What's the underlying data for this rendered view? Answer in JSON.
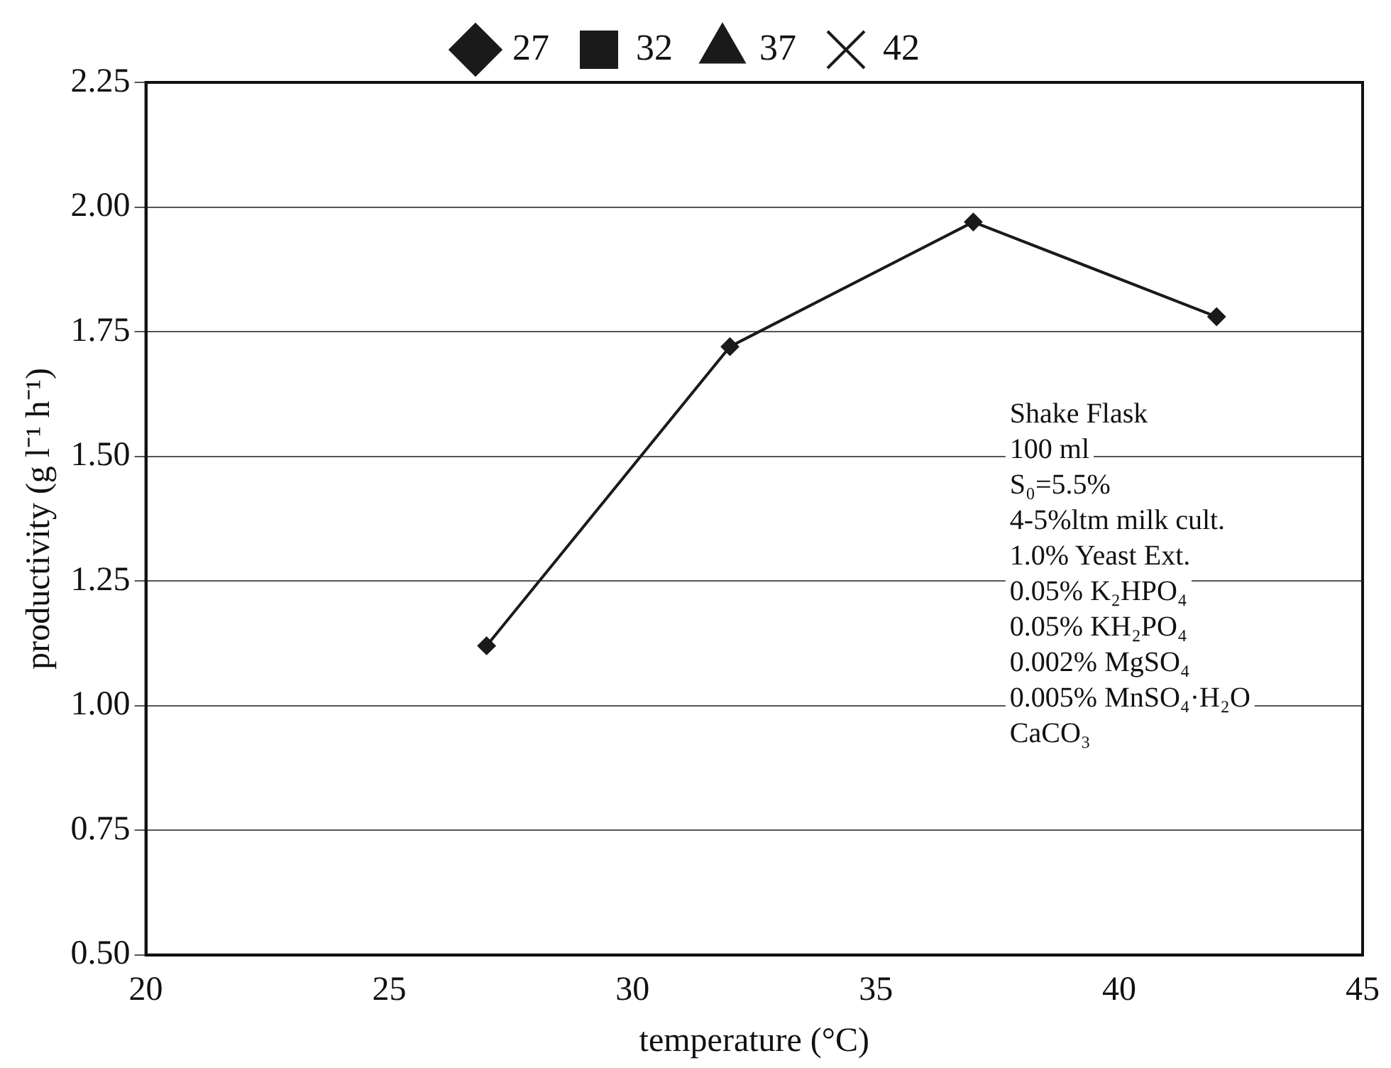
{
  "chart_data": {
    "type": "line",
    "x": [
      27,
      32,
      37,
      42
    ],
    "series": [
      {
        "color": "#1a1a1a",
        "marker": "diamond",
        "values": [
          1.12,
          1.72,
          1.97,
          1.78
        ]
      },
      {
        "name": "27",
        "color": "#1a1a1a",
        "marker": "diamond",
        "values": [
          null,
          null,
          null,
          null
        ]
      },
      {
        "name": "32",
        "color": "#1a1a1a",
        "marker": "square",
        "values": [
          null,
          null,
          null,
          null
        ]
      },
      {
        "name": "37",
        "color": "#1a1a1a",
        "marker": "triangle",
        "values": [
          null,
          null,
          null,
          null
        ]
      },
      {
        "name": "42",
        "color": "#1a1a1a",
        "marker": "cross",
        "values": [
          null,
          null,
          null,
          null
        ]
      }
    ],
    "xlabel": "temperature (°C)",
    "ylabel": "productivity (g l⁻¹ h⁻¹)",
    "xlim": [
      20,
      45
    ],
    "xticks": [
      20,
      25,
      30,
      35,
      40,
      45
    ],
    "ylim": [
      0.5,
      2.25
    ],
    "yticks": [
      {
        "value": 0.5,
        "label": "0.50"
      },
      {
        "value": 0.75,
        "label": "0.75"
      },
      {
        "value": 1,
        "label": "1.00"
      },
      {
        "value": 1.25,
        "label": "1.25"
      },
      {
        "value": 1.5,
        "label": "1.50"
      },
      {
        "value": 1.75,
        "label": "1.75"
      },
      {
        "value": 2,
        "label": "2.00"
      },
      {
        "value": 2.25,
        "label": "2.25"
      }
    ],
    "grid": "y",
    "legend": "top",
    "line_style": "solid",
    "annotations": [
      "Shake Flask",
      "100 ml",
      "S₀=5.5%",
      "4-5%ltm milk cult.",
      "1.0% Yeast Ext.",
      "0.05% K₂HPO₄",
      "0.05% KH₂PO₄",
      "0.002% MgSO₄",
      "0.005% MnSO₄·H₂O",
      "CaCO₃"
    ]
  }
}
